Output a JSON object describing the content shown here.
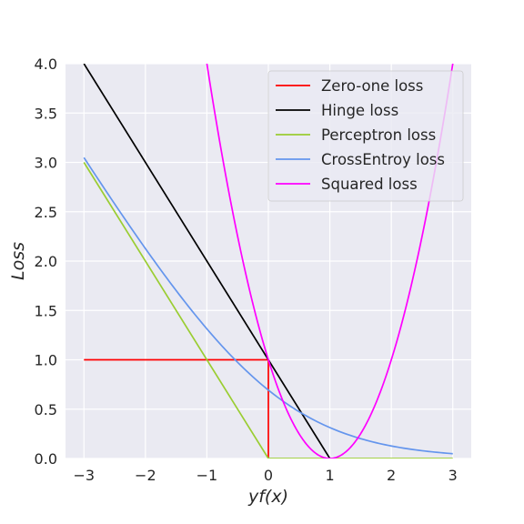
{
  "chart_data": {
    "type": "line",
    "xlabel": "yf(x)",
    "ylabel": "Loss",
    "xlim": [
      -3.3,
      3.3
    ],
    "ylim": [
      0,
      4.0
    ],
    "xticks": [
      -3,
      -2,
      -1,
      0,
      1,
      2,
      3
    ],
    "xtick_labels": [
      "−3",
      "−2",
      "−1",
      "0",
      "1",
      "2",
      "3"
    ],
    "yticks": [
      0.0,
      0.5,
      1.0,
      1.5,
      2.0,
      2.5,
      3.0,
      3.5,
      4.0
    ],
    "ytick_labels": [
      "0.0",
      "0.5",
      "1.0",
      "1.5",
      "2.0",
      "2.5",
      "3.0",
      "3.5",
      "4.0"
    ],
    "grid": true,
    "legend_position": "top-right",
    "series": [
      {
        "name": "Zero-one loss",
        "color": "#ff0000",
        "x": [
          -3,
          0,
          0,
          0
        ],
        "y": [
          1,
          1,
          1,
          0
        ]
      },
      {
        "name": "Hinge loss",
        "color": "#000000",
        "x": [
          -3,
          1
        ],
        "y": [
          4,
          0
        ]
      },
      {
        "name": "Perceptron loss",
        "color": "#9acd32",
        "x": [
          -3,
          0,
          3
        ],
        "y": [
          3,
          0,
          0
        ]
      },
      {
        "name": "CrossEntroy loss",
        "color": "#6495ed",
        "x": [
          -3,
          -2.5,
          -2,
          -1.5,
          -1,
          -0.5,
          0,
          0.5,
          1,
          1.5,
          2,
          2.5,
          3
        ],
        "y": [
          3.049,
          2.579,
          2.127,
          1.701,
          1.313,
          0.974,
          0.693,
          0.474,
          0.313,
          0.201,
          0.127,
          0.079,
          0.049
        ]
      },
      {
        "name": "Squared loss",
        "color": "#ff00ff",
        "x": [
          -1,
          -0.75,
          -0.5,
          -0.25,
          0,
          0.25,
          0.5,
          0.75,
          1,
          1.25,
          1.5,
          1.75,
          2,
          2.25,
          2.5,
          2.75,
          3
        ],
        "y": [
          4,
          3.0625,
          2.25,
          1.5625,
          1,
          0.5625,
          0.25,
          0.0625,
          0,
          0.0625,
          0.25,
          0.5625,
          1,
          1.5625,
          2.25,
          3.0625,
          4
        ]
      }
    ]
  }
}
